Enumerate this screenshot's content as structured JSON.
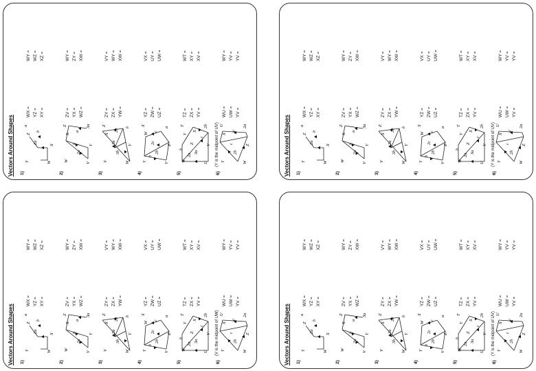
{
  "worksheet": {
    "title": "Vectors Around Shapes",
    "q6_note": "(Y is the midpoint of UV)",
    "q6_note_alt": "(V is the midpoint of UW)",
    "questions": [
      {
        "num": "1)",
        "labels": [
          "W",
          "Y",
          "Z",
          "X",
          "a",
          "b",
          "2a"
        ],
        "eqs": [
          [
            "WX =",
            "YZ =",
            "XY ="
          ],
          [
            "WY =",
            "WZ =",
            "XZ ="
          ]
        ]
      },
      {
        "num": "2)",
        "labels": [
          "V",
          "W",
          "X",
          "Y",
          "Z",
          "a",
          "b",
          "2a",
          "3a"
        ],
        "eqs": [
          [
            "ZV =",
            "YX =",
            "WZ ="
          ],
          [
            "WY =",
            "ZY =",
            "XW ="
          ]
        ]
      },
      {
        "num": "3)",
        "labels": [
          "W",
          "V",
          "X",
          "Y",
          "Z",
          "2b",
          "2a",
          "3b",
          "b"
        ],
        "eqs": [
          [
            "ZY =",
            "ZX =",
            "YW ="
          ],
          [
            "VY =",
            "WY =",
            "XW ="
          ]
        ]
      },
      {
        "num": "4)",
        "labels": [
          "V",
          "Y",
          "W",
          "Z",
          "X",
          "c",
          "2c",
          "2b",
          "a",
          "b"
        ],
        "eqs": [
          [
            "YZ =",
            "ZW =",
            "UZ ="
          ],
          [
            "VX =",
            "UY =",
            "UW ="
          ]
        ]
      },
      {
        "num": "5)",
        "labels": [
          "U",
          "W",
          "Y",
          "V",
          "T",
          "X",
          "Z",
          "3a",
          "2b",
          "2a",
          "c",
          "b"
        ],
        "eqs": [
          [
            "TZ =",
            "ZX =",
            "YV ="
          ],
          [
            "WT =",
            "XY =",
            "XV ="
          ]
        ]
      },
      {
        "num": "6)",
        "labels": [
          "W",
          "Y",
          "X",
          "Z",
          "U",
          "V",
          "c",
          "2b",
          "2a"
        ],
        "eqs": [
          [
            "WU =",
            "UW =",
            "YV ="
          ],
          [
            "WY =",
            "YV =",
            "YV ="
          ]
        ]
      }
    ]
  },
  "cards": [
    {
      "id": "top-left"
    },
    {
      "id": "top-right"
    },
    {
      "id": "bottom-left"
    },
    {
      "id": "bottom-right"
    }
  ]
}
